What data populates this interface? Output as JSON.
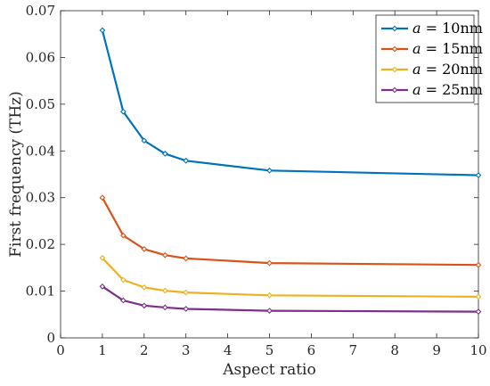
{
  "chart_data": {
    "type": "line",
    "xlabel": "Aspect ratio",
    "ylabel": "First frequency (THz)",
    "xlim": [
      0,
      10
    ],
    "ylim": [
      0,
      0.07
    ],
    "xticks": [
      "0",
      "1",
      "2",
      "3",
      "4",
      "5",
      "6",
      "7",
      "8",
      "9",
      "10"
    ],
    "yticks": [
      "0",
      "0.01",
      "0.02",
      "0.03",
      "0.04",
      "0.05",
      "0.06",
      "0.07"
    ],
    "grid": false,
    "legend_position": "top-right",
    "x": [
      1,
      1.5,
      2,
      2.5,
      3,
      5,
      10
    ],
    "series": [
      {
        "name_var": "a",
        "name_eq": " = 10nm",
        "color": "#0072BD",
        "values": [
          0.0658,
          0.0484,
          0.0422,
          0.0394,
          0.0379,
          0.0358,
          0.0348
        ]
      },
      {
        "name_var": "a",
        "name_eq": " = 15nm",
        "color": "#D95319",
        "values": [
          0.03,
          0.0219,
          0.019,
          0.0177,
          0.017,
          0.016,
          0.0156
        ]
      },
      {
        "name_var": "a",
        "name_eq": " = 20nm",
        "color": "#EDB120",
        "values": [
          0.0171,
          0.0124,
          0.0108,
          0.0101,
          0.0097,
          0.0091,
          0.0088
        ]
      },
      {
        "name_var": "a",
        "name_eq": " = 25nm",
        "color": "#7E2F8E",
        "values": [
          0.011,
          0.008,
          0.0069,
          0.0065,
          0.0062,
          0.0058,
          0.0056
        ]
      }
    ]
  }
}
